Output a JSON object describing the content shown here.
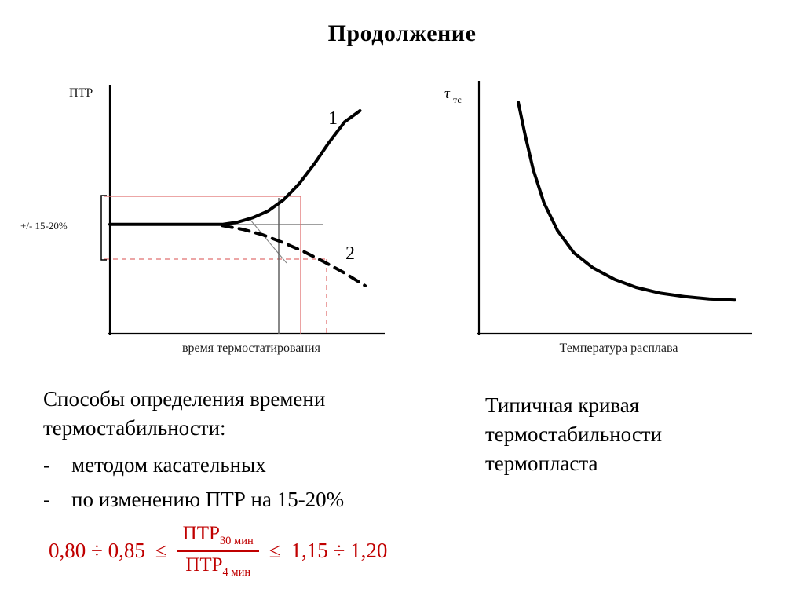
{
  "title": "Продолжение",
  "chart_data": [
    {
      "type": "line",
      "title": "",
      "xlabel": "время термостатирования",
      "ylabel": "ПТР",
      "grid": false,
      "axis_numeric_ticks": false,
      "x_range": [
        0,
        1
      ],
      "y_range": [
        0,
        1
      ],
      "annotations": {
        "tolerance_band": "+/- 15-20%",
        "curve1_label": "1",
        "curve2_label": "2"
      },
      "series": [
        {
          "name": "1",
          "style": "solid",
          "x": [
            0,
            0.3,
            0.44,
            0.5,
            0.56,
            0.62,
            0.68,
            0.74,
            0.8,
            0.86,
            0.92,
            0.98
          ],
          "y": [
            0.49,
            0.49,
            0.49,
            0.5,
            0.52,
            0.55,
            0.6,
            0.67,
            0.76,
            0.86,
            0.95,
            1.0
          ]
        },
        {
          "name": "2",
          "style": "dashed",
          "x": [
            0.44,
            0.52,
            0.6,
            0.68,
            0.76,
            0.84,
            0.92,
            1.0
          ],
          "y": [
            0.485,
            0.468,
            0.443,
            0.408,
            0.368,
            0.322,
            0.272,
            0.215
          ]
        }
      ]
    },
    {
      "type": "line",
      "title": "",
      "xlabel": "Температура расплава",
      "ylabel": "τтс",
      "ylabel_base": "τ",
      "ylabel_sub": "тс",
      "grid": false,
      "axis_numeric_ticks": false,
      "series": [
        {
          "name": "типичная кривая термостабильности термопласта",
          "style": "solid",
          "x": [
            0.145,
            0.17,
            0.2,
            0.24,
            0.29,
            0.35,
            0.42,
            0.5,
            0.58,
            0.67,
            0.76,
            0.85,
            0.945
          ],
          "y": [
            1.0,
            0.86,
            0.71,
            0.565,
            0.445,
            0.35,
            0.285,
            0.235,
            0.2,
            0.175,
            0.16,
            0.15,
            0.145
          ]
        }
      ]
    }
  ],
  "texts": {
    "left_heading_line1": "Способы определения времени",
    "left_heading_line2": "термостабильности:",
    "bullets": [
      {
        "marker": "-",
        "label": "методом касательных"
      },
      {
        "marker": "-",
        "label": "по изменению ПТР на 15-20%"
      }
    ],
    "right_caption_line1": "Типичная кривая",
    "right_caption_line2": "термостабильности",
    "right_caption_line3": "термопласта"
  },
  "formula": {
    "left_bound": "0,80 ÷ 0,85",
    "leq_left": "≤",
    "numerator_base": "ПТР",
    "numerator_sub": "30 мин",
    "denominator_base": "ПТР",
    "denominator_sub": "4 мин",
    "leq_right": "≤",
    "right_bound": "1,15 ÷ 1,20",
    "color": "#C00000"
  },
  "colors": {
    "formula_red": "#C00000",
    "guide_red": "#E07070",
    "curve_black": "#000000"
  }
}
